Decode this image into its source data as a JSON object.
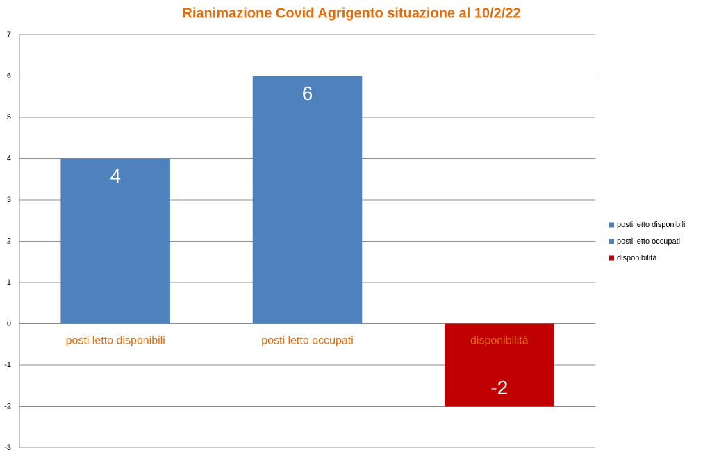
{
  "chart_data": {
    "type": "bar",
    "title": "Rianimazione Covid Agrigento situazione al 10/2/22",
    "categories": [
      "posti letto disponibili",
      "posti letto occupati",
      "disponibilità"
    ],
    "values": [
      4,
      6,
      -2
    ],
    "colors": [
      "#4f81bd",
      "#4f81bd",
      "#c00000"
    ],
    "ylim": [
      -3,
      7
    ],
    "yticks": [
      -3,
      -2,
      -1,
      0,
      1,
      2,
      3,
      4,
      5,
      6,
      7
    ],
    "grid": true,
    "legend": "right"
  }
}
